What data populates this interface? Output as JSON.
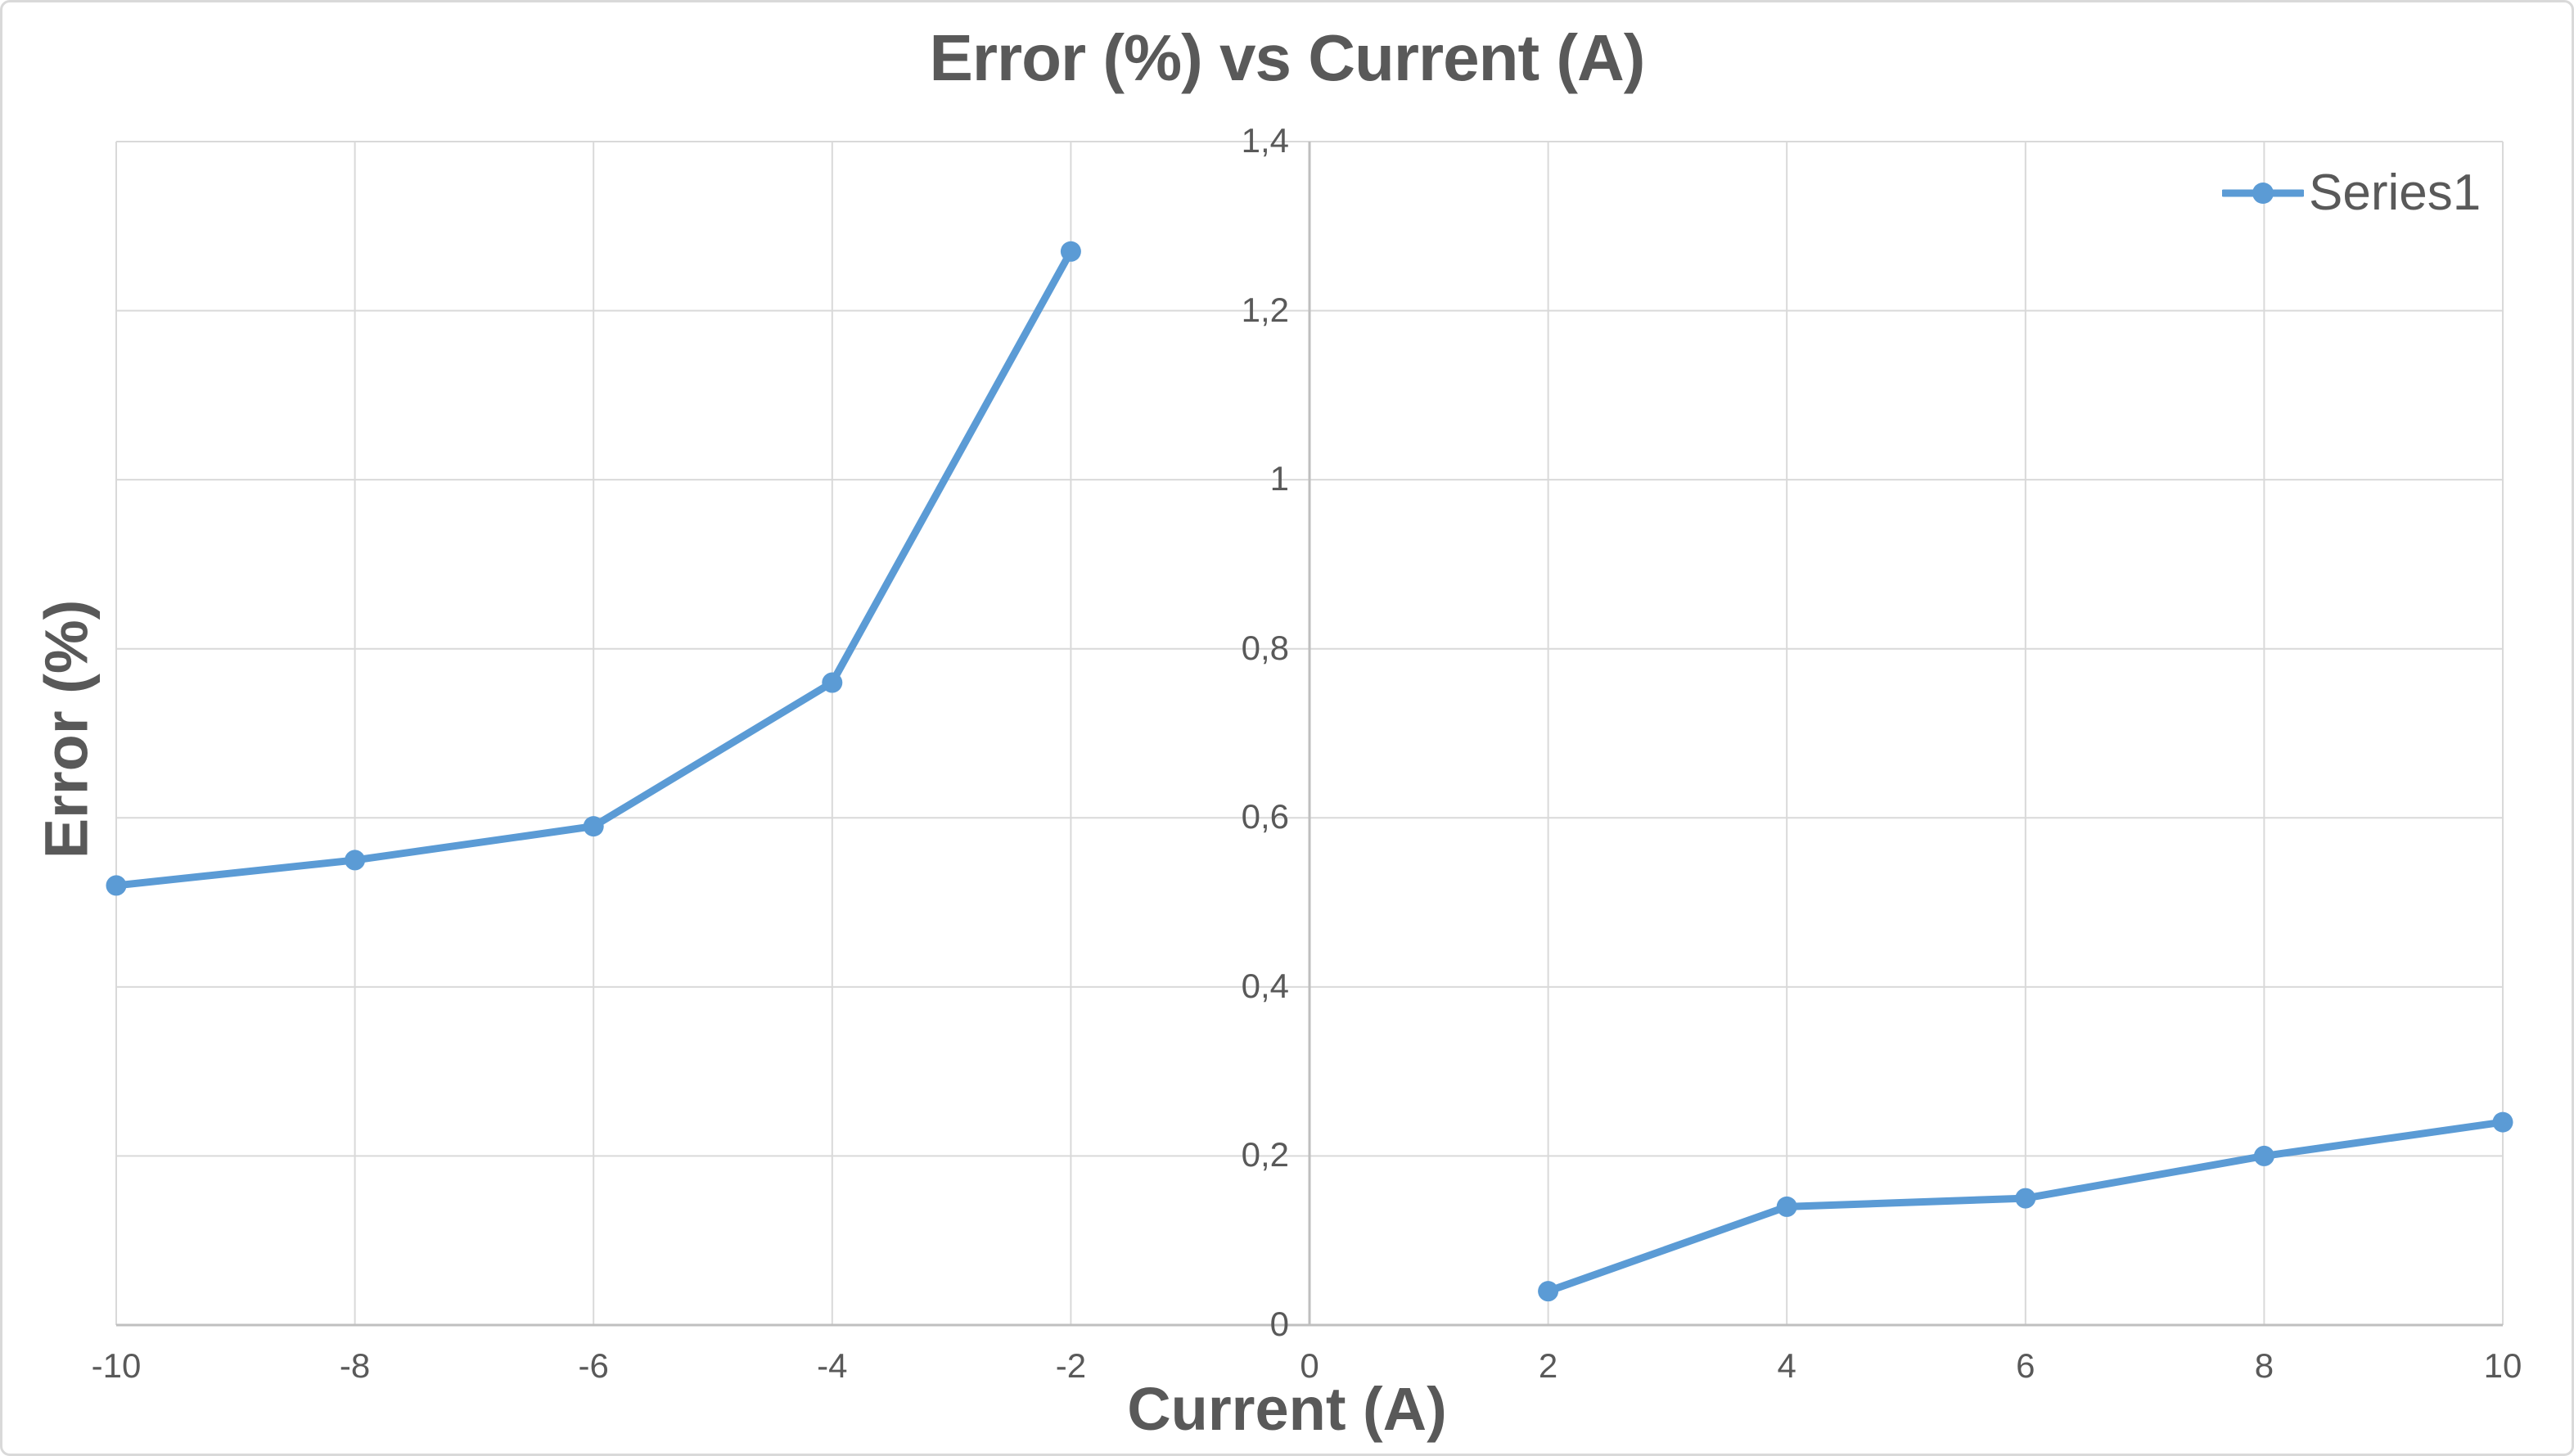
{
  "chart_data": {
    "type": "line",
    "title": "Error (%) vs Current (A)",
    "xlabel": "Current (A)",
    "ylabel": "Error (%)",
    "series": [
      {
        "name": "Series1",
        "color": "#5B9BD5",
        "marker": "circle",
        "x": [
          -10,
          -8,
          -6,
          -4,
          -2,
          0,
          2,
          4,
          6,
          8,
          10
        ],
        "y": [
          0.52,
          0.55,
          0.59,
          0.76,
          1.27,
          null,
          0.04,
          0.14,
          0.15,
          0.2,
          0.24
        ]
      }
    ],
    "x_axis": {
      "min": -10,
      "max": 10,
      "tick_values": [
        -10,
        -8,
        -6,
        -4,
        -2,
        0,
        2,
        4,
        6,
        8,
        10
      ],
      "tick_labels": [
        "-10",
        "-8",
        "-6",
        "-4",
        "-2",
        "0",
        "2",
        "4",
        "6",
        "8",
        "10"
      ]
    },
    "y_axis": {
      "min": 0,
      "max": 1.4,
      "tick_values": [
        0,
        0.2,
        0.4,
        0.6,
        0.8,
        1,
        1.2,
        1.4
      ],
      "tick_labels": [
        "0",
        "0,2",
        "0,4",
        "0,6",
        "0,8",
        "1",
        "1,2",
        "1,4"
      ]
    },
    "grid": true,
    "legend_position": "top-right",
    "decimal_separator": ","
  },
  "legend": {
    "label": "Series1"
  },
  "colors": {
    "series": "#5B9BD5",
    "text": "#595959",
    "gridline": "#D9D9D9",
    "axis_line": "#BFBFBF",
    "frame_border": "#D9D9D9",
    "background": "#FFFFFF"
  }
}
